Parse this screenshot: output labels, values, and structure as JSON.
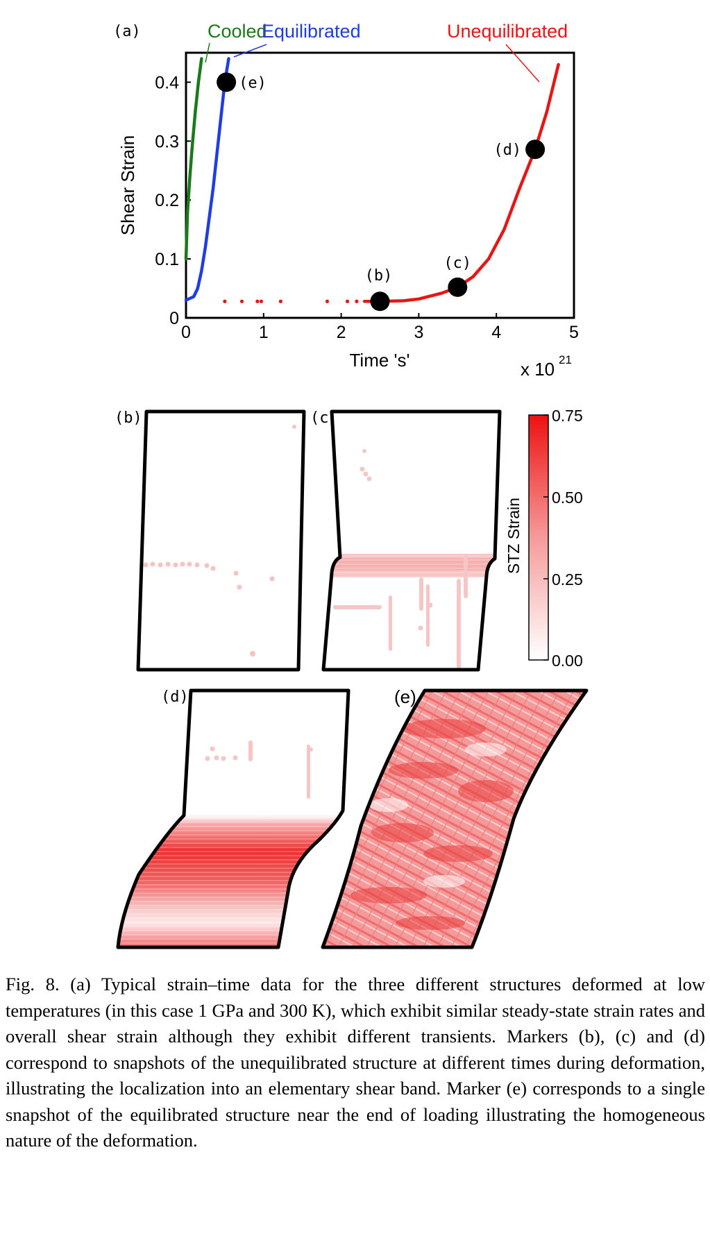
{
  "figure": {
    "panel_a": {
      "label": "(a)",
      "legend": {
        "cooled": "Cooled",
        "equilibrated": "Equilibrated",
        "unequilibrated": "Unequilibrated"
      },
      "markers": [
        {
          "label": "(b)",
          "x": 2.5,
          "y": 0.028
        },
        {
          "label": "(c)",
          "x": 3.5,
          "y": 0.052
        },
        {
          "label": "(d)",
          "x": 4.5,
          "y": 0.286
        },
        {
          "label": "(e)",
          "x": 0.52,
          "y": 0.4
        }
      ],
      "exponent_label": "x 10",
      "exponent_power": "21"
    },
    "snapshots": {
      "b": "(b)",
      "c": "(c)",
      "d": "(d)",
      "e": "(e)"
    },
    "colorbar": {
      "label": "STZ Strain",
      "ticks": [
        "0.75",
        "0.50",
        "0.25",
        "0.00"
      ],
      "max_color": "#ee1111",
      "min_color": "#ffffff"
    }
  },
  "chart_data": {
    "type": "line",
    "xlabel": "Time 's'",
    "ylabel": "Shear Strain",
    "xlim": [
      0,
      5
    ],
    "ylim": [
      0,
      0.45
    ],
    "x_ticks": [
      "0",
      "1",
      "2",
      "3",
      "4",
      "5"
    ],
    "y_ticks": [
      "0",
      "0.1",
      "0.2",
      "0.3",
      "0.4"
    ],
    "series": [
      {
        "name": "Cooled",
        "color": "#1a7a1a",
        "x": [
          0.0,
          0.02,
          0.05,
          0.08,
          0.12,
          0.16,
          0.2
        ],
        "y": [
          0.1,
          0.18,
          0.24,
          0.29,
          0.35,
          0.4,
          0.44
        ]
      },
      {
        "name": "Equilibrated",
        "color": "#1f3de0",
        "x": [
          0.0,
          0.1,
          0.15,
          0.2,
          0.25,
          0.3,
          0.35,
          0.4,
          0.45,
          0.5,
          0.55
        ],
        "y": [
          0.03,
          0.036,
          0.05,
          0.08,
          0.12,
          0.17,
          0.22,
          0.28,
          0.34,
          0.4,
          0.44
        ]
      },
      {
        "name": "Unequilibrated",
        "color": "#e81515",
        "x": [
          2.3,
          2.5,
          2.8,
          3.0,
          3.3,
          3.5,
          3.7,
          3.9,
          4.1,
          4.3,
          4.5,
          4.65,
          4.8
        ],
        "y": [
          0.028,
          0.028,
          0.029,
          0.032,
          0.042,
          0.052,
          0.07,
          0.1,
          0.15,
          0.22,
          0.286,
          0.35,
          0.43
        ]
      },
      {
        "name": "Unequilibrated-sparse",
        "color": "#e81515",
        "style": "dots",
        "x": [
          0.5,
          0.72,
          0.92,
          0.97,
          1.22,
          1.82,
          2.08,
          2.2
        ],
        "y": [
          0.028,
          0.028,
          0.028,
          0.028,
          0.028,
          0.028,
          0.028,
          0.028
        ]
      }
    ]
  },
  "caption": "Fig. 8. (a) Typical strain–time data for the three different structures deformed at low temperatures (in this case 1 GPa and 300 K), which exhibit similar steady-state strain rates and overall shear strain although they exhibit different transients. Markers (b), (c) and (d) correspond to snapshots of the unequilibrated structure at different times during deformation, illustrating the localization into an elementary shear band. Marker (e) corresponds to a single snapshot of the equilibrated structure near the end of loading illustrating the homogeneous nature of the deformation."
}
